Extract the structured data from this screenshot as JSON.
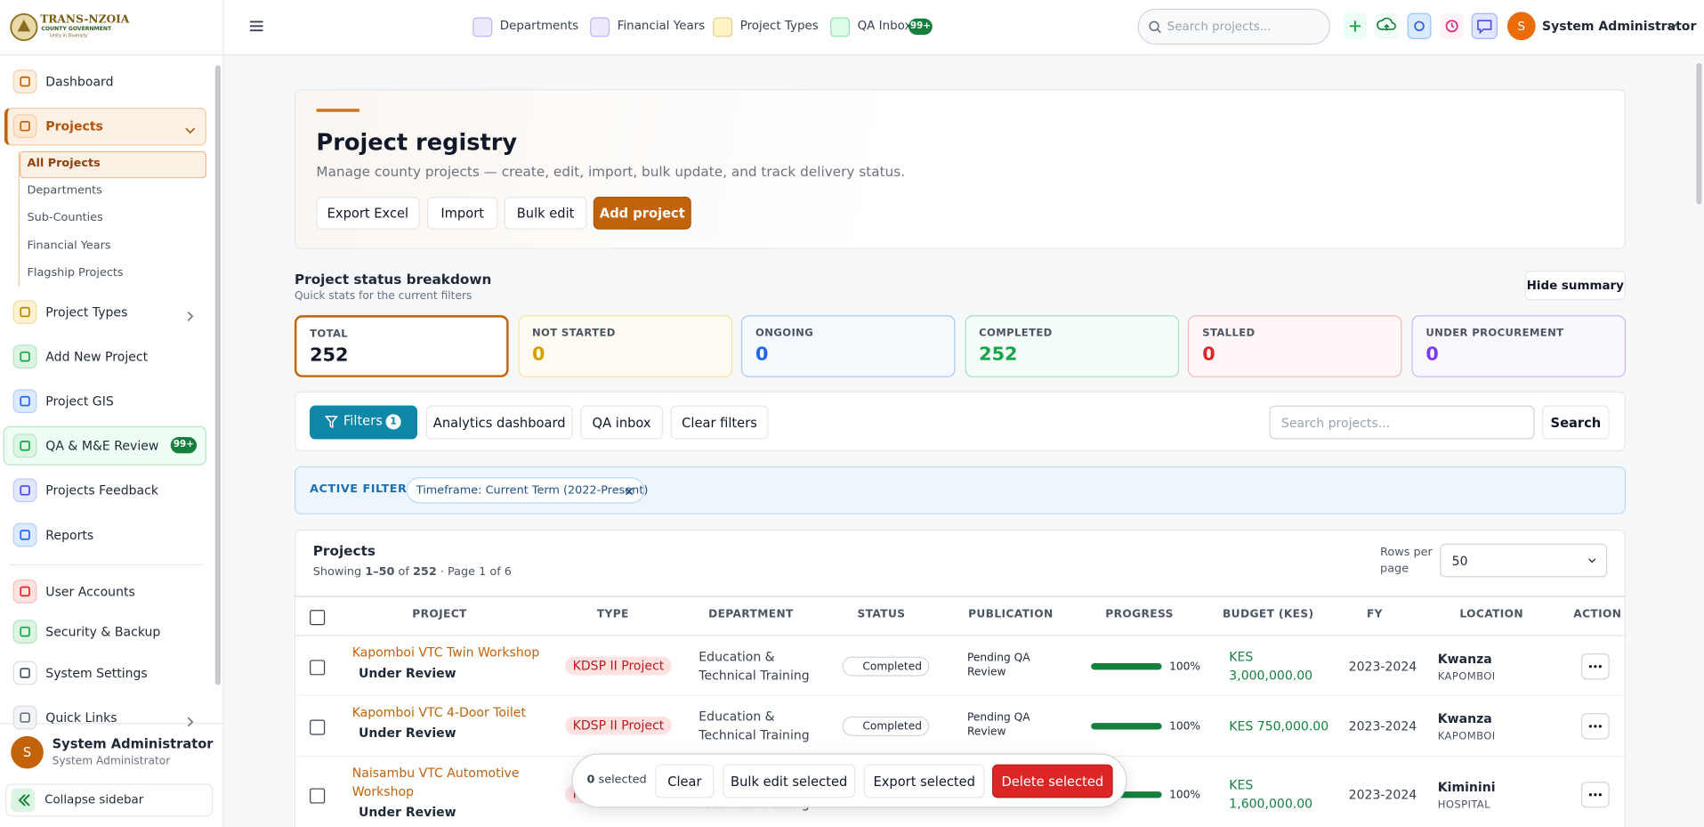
{
  "logo": {
    "title": "TRANS-NZOIA",
    "subtitle": "COUNTY GOVERNMENT",
    "motto": "Unity in Diversity"
  },
  "sidebar": {
    "nav": [
      {
        "label": "Dashboard"
      },
      {
        "label": "Projects",
        "children": [
          "All Projects",
          "Departments",
          "Sub-Counties",
          "Financial Years",
          "Flagship Projects"
        ]
      },
      {
        "label": "Project Types"
      },
      {
        "label": "Add New Project"
      },
      {
        "label": "Project GIS"
      },
      {
        "label": "QA & M&E Review",
        "badge": "99+"
      },
      {
        "label": "Projects Feedback"
      },
      {
        "label": "Reports"
      },
      {
        "label": "User Accounts"
      },
      {
        "label": "Security & Backup"
      },
      {
        "label": "System Settings"
      },
      {
        "label": "Quick Links"
      }
    ],
    "user": {
      "initial": "S",
      "name": "System Administrator",
      "role": "System Administrator"
    },
    "collapse": "Collapse sidebar"
  },
  "topbar": {
    "links": [
      {
        "label": "Departments"
      },
      {
        "label": "Financial Years"
      },
      {
        "label": "Project Types"
      },
      {
        "label": "QA Inbox",
        "badge": "99+"
      }
    ],
    "search": "Search projects...",
    "user": {
      "initial": "S",
      "name": "System Administrator"
    }
  },
  "header": {
    "title": "Project registry",
    "description": "Manage county projects — create, edit, import, bulk update, and track delivery status.",
    "buttons": [
      "Export Excel",
      "Import",
      "Bulk edit",
      "Add project"
    ]
  },
  "summary": {
    "title": "Project status breakdown",
    "subtitle": "Quick stats for the current filters",
    "hide": "Hide summary",
    "cards": [
      {
        "label": "TOTAL",
        "value": 252
      },
      {
        "label": "NOT STARTED",
        "value": 0
      },
      {
        "label": "ONGOING",
        "value": 0
      },
      {
        "label": "COMPLETED",
        "value": 252
      },
      {
        "label": "STALLED",
        "value": 0
      },
      {
        "label": "UNDER PROCUREMENT",
        "value": 0
      }
    ]
  },
  "filters": {
    "filters_button": "Filters",
    "count": 1,
    "buttons": [
      "Analytics dashboard",
      "QA inbox",
      "Clear filters"
    ],
    "search": "Search projects...",
    "search_button": "Search",
    "active_label": "ACTIVE FILTERS",
    "chip": "Timeframe: Current Term (2022-Present)"
  },
  "table": {
    "title": "Projects",
    "showing": {
      "prefix": "Showing",
      "range": "1–50",
      "of": "of",
      "total": 252,
      "page": "· Page 1 of 6"
    },
    "rows_per_page_label": "Rows per page",
    "rows_per_page": 50,
    "columns": [
      "PROJECT",
      "TYPE",
      "DEPARTMENT",
      "STATUS",
      "PUBLICATION",
      "PROGRESS",
      "BUDGET (KES)",
      "FY",
      "LOCATION",
      "ACTION"
    ],
    "rows": [
      {
        "project": "Kapomboi VTC Twin Workshop",
        "review": "Under Review",
        "type": "KDSP II Project",
        "department": "Education & Technical Training",
        "status": "Completed",
        "publication": "Pending QA Review",
        "progress": 100,
        "progress_label": "100%",
        "budget": "KES 3,000,000.00",
        "fy": "2023-2024",
        "ward": "Kwanza",
        "location": "KAPOMBOI"
      },
      {
        "project": "Kapomboi VTC 4-Door Toilet",
        "review": "Under Review",
        "type": "KDSP II Project",
        "department": "Education & Technical Training",
        "status": "Completed",
        "publication": "Pending QA Review",
        "progress": 100,
        "progress_label": "100%",
        "budget": "KES 750,000.00",
        "fy": "2023-2024",
        "ward": "Kwanza",
        "location": "KAPOMBOI"
      },
      {
        "project": "Naisambu VTC Automotive Workshop",
        "review": "Under Review",
        "type": "KDSP II Project",
        "department": "Education & Technical Training",
        "progress": 100,
        "progress_label": "100%",
        "budget": "KES 1,600,000.00",
        "fy": "2023-2024",
        "ward": "Kiminini",
        "location": "HOSPITAL"
      }
    ]
  },
  "bulk": {
    "count": 0,
    "selected": "selected",
    "buttons": [
      "Clear",
      "Bulk edit selected",
      "Export selected",
      "Delete selected"
    ]
  }
}
